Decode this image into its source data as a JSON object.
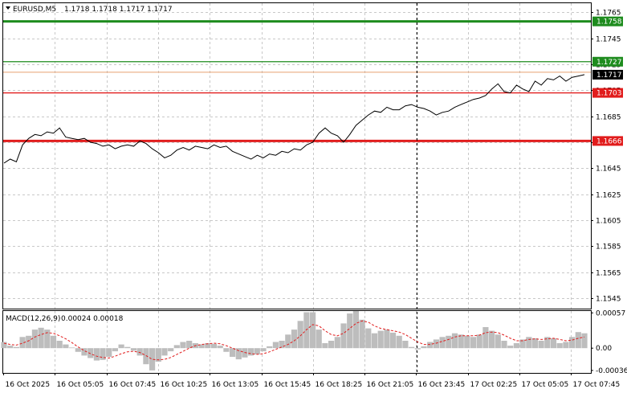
{
  "header": {
    "symbol": "EURUSD,M5",
    "ohlc": "1.1718 1.1718 1.1717 1.1717"
  },
  "macd_header": {
    "label": "MACD(12,26,9)",
    "values": "0.00024 0.00018"
  },
  "colors": {
    "background": "#ffffff",
    "grid": "#c8c8c8",
    "price_line": "#000000",
    "green_level": "#1e8c1e",
    "red_level": "#e11c1c",
    "macd_hist": "#bdbdbd",
    "macd_signal": "#e11c1c",
    "current_price_bg": "#000000"
  },
  "chart_data": [
    {
      "type": "line",
      "name": "price",
      "ylim": [
        1.1537,
        1.1772
      ],
      "y_ticks": [
        "1.1765",
        "1.1745",
        "1.1725",
        "1.1705",
        "1.1685",
        "1.1665",
        "1.1645",
        "1.1625",
        "1.1605",
        "1.1585",
        "1.1565",
        "1.1545"
      ],
      "x_tick_labels": [
        "16 Oct 2025",
        "16 Oct 05:05",
        "16 Oct 07:45",
        "16 Oct 10:25",
        "16 Oct 13:05",
        "16 Oct 15:45",
        "16 Oct 18:25",
        "16 Oct 21:05",
        "16 Oct 23:45",
        "17 Oct 02:25",
        "17 Oct 05:05",
        "17 Oct 07:45"
      ],
      "level_lines": [
        {
          "value": 1.1758,
          "label": "1.1758",
          "color": "#1e8c1e",
          "style": "thick"
        },
        {
          "value": 1.1727,
          "label": "1.1727",
          "color": "#1e8c1e",
          "style": "thin"
        },
        {
          "value": 1.1703,
          "label": "1.1703",
          "color": "#e11c1c",
          "style": "thin"
        },
        {
          "value": 1.1666,
          "label": "1.1666",
          "color": "#e11c1c",
          "style": "thick"
        }
      ],
      "current_price": {
        "value": 1.1717,
        "label": "1.1717"
      },
      "series": [
        {
          "values": [
            1.1649,
            1.1652,
            1.165,
            1.1663,
            1.1668,
            1.1671,
            1.167,
            1.1673,
            1.1672,
            1.1676,
            1.1669,
            1.1668,
            1.1667,
            1.1668,
            1.1665,
            1.1664,
            1.1662,
            1.1663,
            1.166,
            1.1662,
            1.1663,
            1.1662,
            1.1666,
            1.1664,
            1.166,
            1.1657,
            1.1653,
            1.1655,
            1.1659,
            1.1661,
            1.1659,
            1.1662,
            1.1661,
            1.166,
            1.1663,
            1.1661,
            1.1662,
            1.1658,
            1.1656,
            1.1654,
            1.1652,
            1.1655,
            1.1653,
            1.1656,
            1.1655,
            1.1658,
            1.1657,
            1.166,
            1.1659,
            1.1663,
            1.1665,
            1.1672,
            1.1676,
            1.1672,
            1.167,
            1.1665,
            1.1671,
            1.1678,
            1.1682,
            1.1686,
            1.1689,
            1.1688,
            1.1692,
            1.169,
            1.169,
            1.1693,
            1.1694,
            1.1692,
            1.1691,
            1.1689,
            1.1686,
            1.1688,
            1.1689,
            1.1692,
            1.1694,
            1.1696,
            1.1698,
            1.1699,
            1.1701,
            1.1706,
            1.171,
            1.1704,
            1.1703,
            1.1709,
            1.1706,
            1.1704,
            1.1712,
            1.1709,
            1.1714,
            1.1713,
            1.1716,
            1.1712,
            1.1715,
            1.1716,
            1.1717
          ]
        }
      ]
    },
    {
      "type": "bar",
      "name": "macd",
      "ylim": [
        -0.0004,
        0.0006
      ],
      "y_ticks": [
        "0.00057",
        "0.00",
        "-0.00036"
      ],
      "series": [
        {
          "name": "MACD(12,26,9)",
          "values": [
            0.0001,
            4e-05,
            2e-05,
            0.00018,
            0.0002,
            0.0003,
            0.00033,
            0.0003,
            0.0002,
            0.00012,
            6e-05,
            1e-05,
            -6e-05,
            -0.00012,
            -0.00016,
            -0.0002,
            -0.00019,
            -0.00014,
            -5e-05,
            6e-05,
            2e-05,
            -4e-05,
            -0.00012,
            -0.00026,
            -0.00036,
            -0.00022,
            -0.00012,
            -5e-05,
            5e-05,
            0.0001,
            0.00012,
            8e-05,
            6e-05,
            8e-05,
            7e-05,
            4e-05,
            -6e-05,
            -0.00014,
            -0.00018,
            -0.00015,
            -0.00012,
            -0.0001,
            -5e-05,
            3e-05,
            0.0001,
            0.00012,
            0.00022,
            0.0003,
            0.00044,
            0.00058,
            0.00058,
            0.0003,
            8e-05,
            0.00012,
            0.00018,
            0.0004,
            0.00056,
            0.0006,
            0.00046,
            0.00032,
            0.00024,
            0.00028,
            0.0003,
            0.00025,
            0.0002,
            0.00012,
            2e-05,
            -2e-05,
            3e-05,
            0.0001,
            0.00014,
            0.00018,
            0.0002,
            0.00024,
            0.00022,
            0.0002,
            0.00018,
            0.00022,
            0.00034,
            0.00028,
            0.00022,
            0.00012,
            4e-05,
            8e-05,
            0.00014,
            0.00018,
            0.00016,
            0.00012,
            0.00018,
            0.00016,
            8e-05,
            0.0001,
            0.00018,
            0.00026,
            0.00024
          ]
        },
        {
          "name": "signal",
          "values": [
            8e-05,
            6e-05,
            5e-05,
            8e-05,
            0.00012,
            0.00018,
            0.00022,
            0.00025,
            0.00024,
            0.0002,
            0.00015,
            9e-05,
            2e-05,
            -4e-05,
            -9e-05,
            -0.00013,
            -0.00015,
            -0.00016,
            -0.00013,
            -9e-05,
            -6e-05,
            -5e-05,
            -7e-05,
            -0.00012,
            -0.00018,
            -0.00019,
            -0.00018,
            -0.00015,
            -0.0001,
            -5e-05,
            0.0,
            4e-05,
            6e-05,
            7e-05,
            8e-05,
            7e-05,
            4e-05,
            0.0,
            -4e-05,
            -7e-05,
            -9e-05,
            -0.0001,
            -9e-05,
            -6e-05,
            -2e-05,
            2e-05,
            6e-05,
            0.00012,
            0.0002,
            0.0003,
            0.00038,
            0.00036,
            0.00028,
            0.00022,
            0.0002,
            0.00024,
            0.00032,
            0.0004,
            0.00044,
            0.00042,
            0.00036,
            0.00032,
            0.0003,
            0.00028,
            0.00026,
            0.00022,
            0.00016,
            0.0001,
            6e-05,
            6e-05,
            8e-05,
            0.00011,
            0.00014,
            0.00018,
            0.0002,
            0.0002,
            0.0002,
            0.00021,
            0.00025,
            0.00026,
            0.00025,
            0.00021,
            0.00016,
            0.00012,
            0.00012,
            0.00014,
            0.00015,
            0.00014,
            0.00015,
            0.00016,
            0.00014,
            0.00012,
            0.00013,
            0.00016,
            0.00018
          ]
        }
      ]
    }
  ]
}
